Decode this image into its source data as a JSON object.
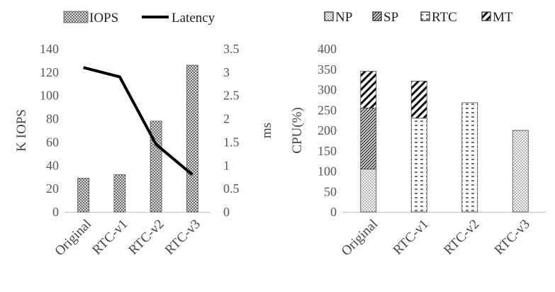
{
  "chart_data": [
    {
      "type": "bar",
      "categories": [
        "Original",
        "RTC-v1",
        "RTC-v2",
        "RTC-v3"
      ],
      "series": [
        {
          "name": "IOPS",
          "kind": "bar",
          "axis": "left",
          "pattern": "crosshatch",
          "values": [
            29,
            32,
            78,
            126
          ]
        },
        {
          "name": "Latency",
          "kind": "line",
          "axis": "right",
          "values": [
            3.1,
            2.9,
            1.45,
            0.8
          ]
        }
      ],
      "ylabel": "K IOPS",
      "ylim": [
        0,
        140
      ],
      "yticks": [
        0,
        20,
        40,
        60,
        80,
        100,
        120,
        140
      ],
      "y2label": "ms",
      "y2lim": [
        0,
        3.5
      ],
      "y2ticks": [
        0,
        0.5,
        1,
        1.5,
        2,
        2.5,
        3,
        3.5
      ],
      "legend": "top",
      "grid": false
    },
    {
      "type": "bar",
      "stacked": true,
      "categories": [
        "Original",
        "RTC-v1",
        "RTC-v2",
        "RTC-v3"
      ],
      "series": [
        {
          "name": "NP",
          "pattern": "dots",
          "values": [
            105,
            0,
            0,
            200
          ]
        },
        {
          "name": "SP",
          "pattern": "dense-diagonal",
          "values": [
            150,
            0,
            0,
            0
          ]
        },
        {
          "name": "RTC",
          "pattern": "dashes",
          "values": [
            0,
            230,
            268,
            0
          ]
        },
        {
          "name": "MT",
          "pattern": "wide-diagonal",
          "values": [
            90,
            91,
            0,
            0
          ]
        }
      ],
      "ylabel": "CPU(%)",
      "ylim": [
        0,
        400
      ],
      "yticks": [
        0,
        50,
        100,
        150,
        200,
        250,
        300,
        350,
        400
      ],
      "legend": "top",
      "grid": false
    }
  ]
}
